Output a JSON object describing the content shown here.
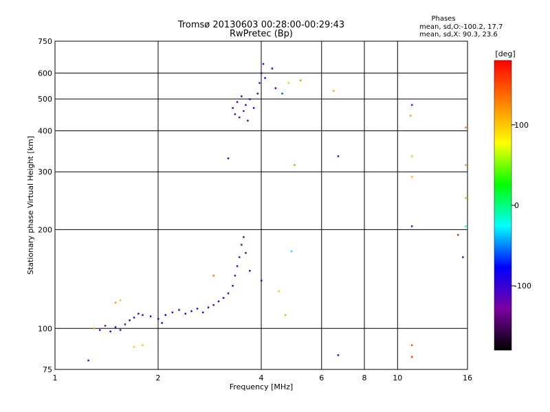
{
  "chart_data": {
    "type": "scatter",
    "title": "Tromsø 20130603 00:28:00-00:29:43",
    "subtitle": "RwPretec (Bp)",
    "xlabel": "Frequency [MHz]",
    "ylabel": "Stationary phase Virtual Height [km]",
    "x_scale": "log",
    "y_scale": "log",
    "xlim": [
      1,
      16
    ],
    "ylim": [
      75,
      750
    ],
    "x_ticks": [
      1,
      2,
      4,
      6,
      8,
      10,
      16
    ],
    "y_ticks": [
      75,
      100,
      200,
      300,
      400,
      500,
      600,
      750
    ],
    "grid": true,
    "phases_box": {
      "heading": "Phases",
      "line_o": "mean, sd,O:-100.2, 17.7",
      "line_x": "mean, sd,X:  90.3, 23.6"
    },
    "colorbar": {
      "label": "[deg]",
      "range": [
        -180,
        180
      ],
      "ticks": [
        100,
        0,
        -100
      ],
      "colors": [
        "#000000",
        "#7a00a0",
        "#0000ff",
        "#00ffff",
        "#00ff00",
        "#ffff00",
        "#ff8000",
        "#ff0000"
      ]
    },
    "points": [
      {
        "x": 1.35,
        "y": 99,
        "phase": -110
      },
      {
        "x": 1.4,
        "y": 102,
        "phase": -120
      },
      {
        "x": 1.45,
        "y": 98,
        "phase": -100
      },
      {
        "x": 1.5,
        "y": 101,
        "phase": -95
      },
      {
        "x": 1.55,
        "y": 99,
        "phase": -115
      },
      {
        "x": 1.6,
        "y": 103,
        "phase": -105
      },
      {
        "x": 1.65,
        "y": 106,
        "phase": -90
      },
      {
        "x": 1.7,
        "y": 108,
        "phase": -100
      },
      {
        "x": 1.75,
        "y": 111,
        "phase": -85
      },
      {
        "x": 1.8,
        "y": 110,
        "phase": -110
      },
      {
        "x": 1.9,
        "y": 109,
        "phase": -100
      },
      {
        "x": 2.0,
        "y": 107,
        "phase": -95
      },
      {
        "x": 2.05,
        "y": 104,
        "phase": -105
      },
      {
        "x": 2.1,
        "y": 110,
        "phase": -80
      },
      {
        "x": 2.2,
        "y": 112,
        "phase": -100
      },
      {
        "x": 2.3,
        "y": 114,
        "phase": -110
      },
      {
        "x": 2.4,
        "y": 111,
        "phase": -90
      },
      {
        "x": 2.5,
        "y": 113,
        "phase": -100
      },
      {
        "x": 2.6,
        "y": 115,
        "phase": -105
      },
      {
        "x": 2.7,
        "y": 112,
        "phase": -95
      },
      {
        "x": 2.8,
        "y": 116,
        "phase": -100
      },
      {
        "x": 2.9,
        "y": 118,
        "phase": -110
      },
      {
        "x": 3.0,
        "y": 121,
        "phase": -100
      },
      {
        "x": 3.1,
        "y": 124,
        "phase": -90
      },
      {
        "x": 3.2,
        "y": 128,
        "phase": -105
      },
      {
        "x": 3.3,
        "y": 135,
        "phase": -100
      },
      {
        "x": 3.35,
        "y": 145,
        "phase": -115
      },
      {
        "x": 3.4,
        "y": 155,
        "phase": -110
      },
      {
        "x": 3.45,
        "y": 165,
        "phase": -120
      },
      {
        "x": 3.5,
        "y": 180,
        "phase": -130
      },
      {
        "x": 3.55,
        "y": 190,
        "phase": -135
      },
      {
        "x": 3.6,
        "y": 170,
        "phase": -115
      },
      {
        "x": 3.7,
        "y": 150,
        "phase": -100
      },
      {
        "x": 4.0,
        "y": 140,
        "phase": -95
      },
      {
        "x": 3.3,
        "y": 470,
        "phase": -110
      },
      {
        "x": 3.35,
        "y": 450,
        "phase": -120
      },
      {
        "x": 3.4,
        "y": 490,
        "phase": -100
      },
      {
        "x": 3.45,
        "y": 440,
        "phase": -115
      },
      {
        "x": 3.5,
        "y": 510,
        "phase": -105
      },
      {
        "x": 3.55,
        "y": 460,
        "phase": -125
      },
      {
        "x": 3.6,
        "y": 480,
        "phase": -100
      },
      {
        "x": 3.65,
        "y": 430,
        "phase": -110
      },
      {
        "x": 3.7,
        "y": 500,
        "phase": -95
      },
      {
        "x": 3.8,
        "y": 470,
        "phase": -105
      },
      {
        "x": 3.9,
        "y": 520,
        "phase": -100
      },
      {
        "x": 3.95,
        "y": 560,
        "phase": -110
      },
      {
        "x": 4.0,
        "y": 600,
        "phase": -120
      },
      {
        "x": 4.05,
        "y": 640,
        "phase": -115
      },
      {
        "x": 4.1,
        "y": 580,
        "phase": -100
      },
      {
        "x": 4.3,
        "y": 620,
        "phase": -95
      },
      {
        "x": 4.4,
        "y": 540,
        "phase": -90
      },
      {
        "x": 4.6,
        "y": 520,
        "phase": -60
      },
      {
        "x": 4.8,
        "y": 560,
        "phase": 100
      },
      {
        "x": 5.2,
        "y": 570,
        "phase": 120
      },
      {
        "x": 3.2,
        "y": 330,
        "phase": -105
      },
      {
        "x": 5.0,
        "y": 315,
        "phase": 120
      },
      {
        "x": 6.5,
        "y": 530,
        "phase": 110
      },
      {
        "x": 6.7,
        "y": 335,
        "phase": -110
      },
      {
        "x": 6.7,
        "y": 83,
        "phase": -110
      },
      {
        "x": 11.0,
        "y": 480,
        "phase": -120
      },
      {
        "x": 10.9,
        "y": 445,
        "phase": 120
      },
      {
        "x": 11.0,
        "y": 335,
        "phase": 100
      },
      {
        "x": 11.0,
        "y": 290,
        "phase": 110
      },
      {
        "x": 11.0,
        "y": 205,
        "phase": -120
      },
      {
        "x": 11.0,
        "y": 89,
        "phase": 150
      },
      {
        "x": 11.0,
        "y": 82,
        "phase": 160
      },
      {
        "x": 15.0,
        "y": 193,
        "phase": 170
      },
      {
        "x": 15.5,
        "y": 165,
        "phase": -130
      },
      {
        "x": 15.8,
        "y": 410,
        "phase": 130
      },
      {
        "x": 15.8,
        "y": 315,
        "phase": 120
      },
      {
        "x": 15.8,
        "y": 250,
        "phase": 110
      },
      {
        "x": 15.8,
        "y": 205,
        "phase": -20
      },
      {
        "x": 1.25,
        "y": 80,
        "phase": -110
      },
      {
        "x": 1.7,
        "y": 88,
        "phase": 100
      },
      {
        "x": 1.8,
        "y": 89,
        "phase": 100
      },
      {
        "x": 1.3,
        "y": 100,
        "phase": 120
      },
      {
        "x": 1.5,
        "y": 120,
        "phase": 120
      },
      {
        "x": 1.55,
        "y": 122,
        "phase": 100
      },
      {
        "x": 2.9,
        "y": 145,
        "phase": 130
      },
      {
        "x": 4.5,
        "y": 130,
        "phase": 100
      },
      {
        "x": 4.7,
        "y": 110,
        "phase": 110
      },
      {
        "x": 4.9,
        "y": 172,
        "phase": -30
      }
    ]
  }
}
